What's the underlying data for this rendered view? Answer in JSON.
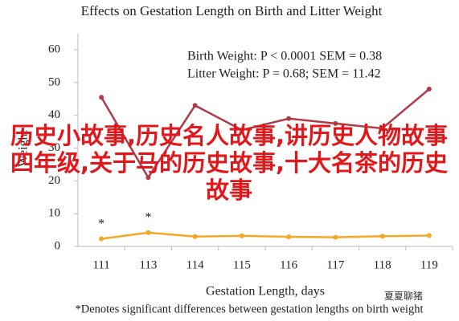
{
  "chart_data": {
    "type": "line",
    "title": "Effects on Gestation Length on Birth and Litter Weight",
    "x_label": "Gestation Length, days",
    "y_label": "Weight",
    "categories": [
      "111",
      "113",
      "114",
      "115",
      "116",
      "117",
      "118",
      "119"
    ],
    "series": [
      {
        "color": "#f5a623",
        "values": [
          2.3,
          4.2,
          3.0,
          3.2,
          2.9,
          2.8,
          3.1,
          3.3
        ]
      },
      {
        "color": "#b03a48",
        "values": [
          45.5,
          21,
          43,
          35.5,
          39,
          37.5,
          36,
          48
        ]
      }
    ],
    "ylim": [
      0,
      60
    ],
    "yticks": [
      0,
      10,
      20,
      30,
      40,
      50,
      60
    ],
    "annotations": [
      "Birth Weight: P < 0.0001 SEM = 0.38",
      "Litter Weight: P = 0.68; SEM = 11.42"
    ],
    "markers": [
      {
        "text": "*",
        "at": "111"
      },
      {
        "text": "*",
        "at": "113"
      }
    ],
    "footnote": "*Denotes significant differences between gestation lengths on birth weight"
  },
  "overlay_text": "历史小故事,历史名人故事,讲历史人物故事四年级,关于马的历史故事,十大名茶的历史故事",
  "watermark": "夏夏聊猪"
}
